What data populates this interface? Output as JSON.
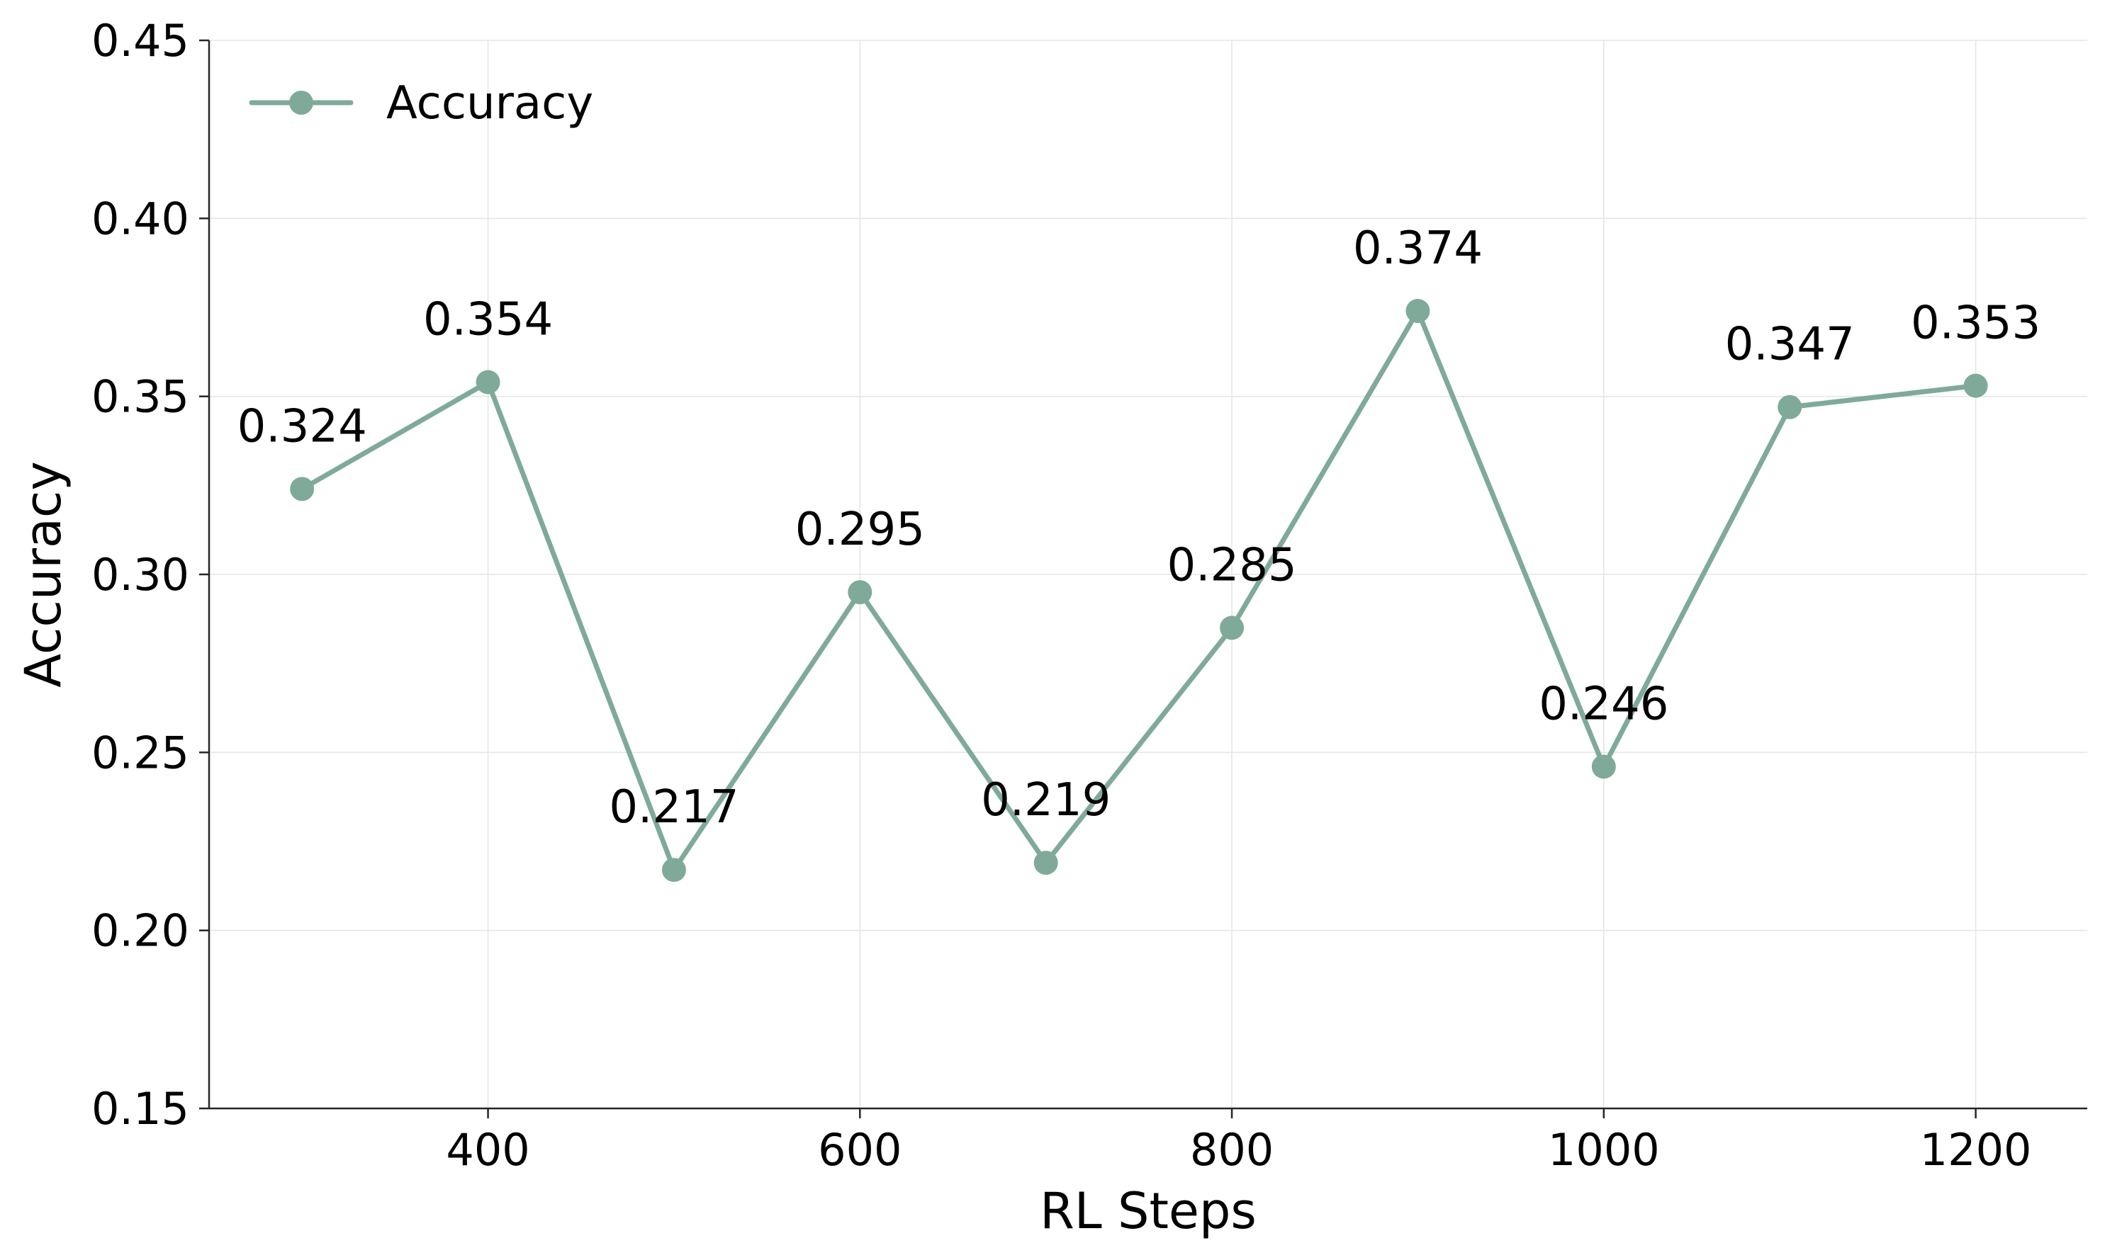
{
  "chart_data": {
    "type": "line",
    "title": "",
    "xlabel": "RL Steps",
    "ylabel": "Accuracy",
    "xlim": [
      250,
      1260
    ],
    "ylim": [
      0.15,
      0.45
    ],
    "x_ticks": [
      400,
      600,
      800,
      1000,
      1200
    ],
    "y_ticks": [
      "0.15",
      "0.20",
      "0.25",
      "0.30",
      "0.35",
      "0.40",
      "0.45"
    ],
    "grid": true,
    "legend_position": "top-left",
    "series": [
      {
        "name": "Accuracy",
        "color": "#7faa99",
        "x": [
          300,
          400,
          500,
          600,
          700,
          800,
          900,
          1000,
          1100,
          1200
        ],
        "values": [
          0.324,
          0.354,
          0.217,
          0.295,
          0.219,
          0.285,
          0.374,
          0.246,
          0.347,
          0.353
        ],
        "labels": [
          "0.324",
          "0.354",
          "0.217",
          "0.295",
          "0.219",
          "0.285",
          "0.374",
          "0.246",
          "0.347",
          "0.353"
        ]
      }
    ]
  }
}
